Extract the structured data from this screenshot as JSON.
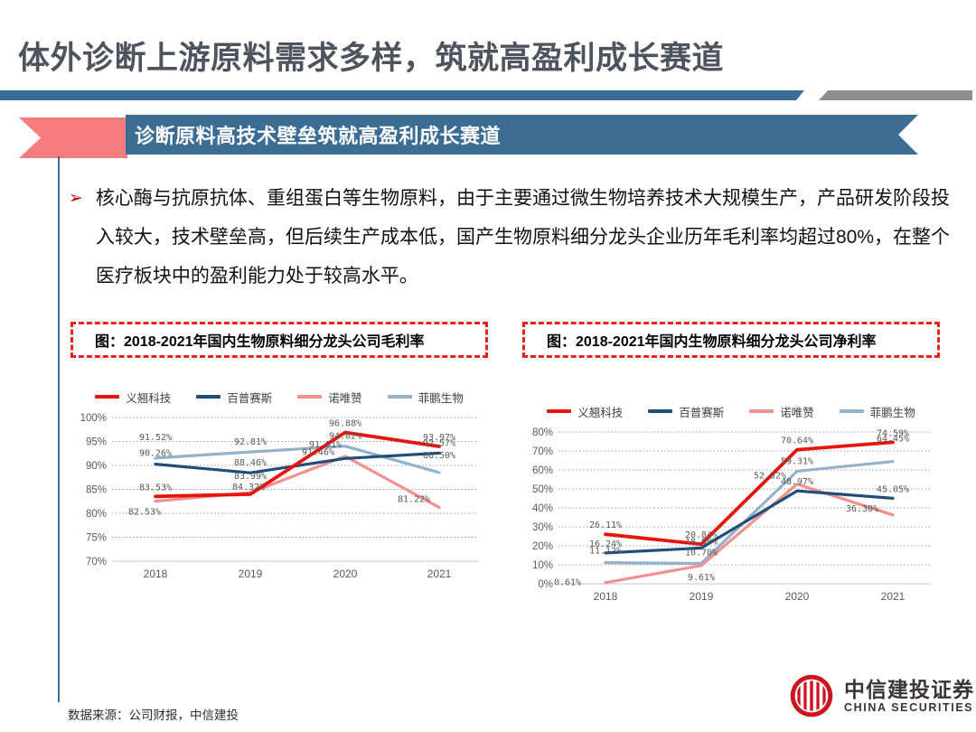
{
  "page": {
    "title": "体外诊断上游原料需求多样，筑就高盈利成长赛道",
    "banner_label": "诊断原料高技术壁垒筑就高盈利成长赛道",
    "bullet_glyph": "➢",
    "bullet_text": "核心酶与抗原抗体、重组蛋白等生物原料，由于主要通过微生物培养技术大规模生产，产品研发阶段投入较大，技术壁垒高，但后续生产成本低，国产生物原料细分龙头企业历年毛利率均超过80%，在整个医疗板块中的盈利能力处于较高水平。",
    "source": "数据来源：公司财报，中信建投",
    "logo": {
      "name_cn": "中信建投证券",
      "name_en": "CHINA SECURITIES"
    }
  },
  "colors": {
    "banner_blue": "#3b6d94",
    "accent_gray": "#8e8e8e",
    "ribbon_pink": "#f57d7d",
    "dashed_box_red": "#e8221e",
    "gridline_gray": "#9c9c9c",
    "label_gray": "#595959"
  },
  "chart_data": [
    {
      "type": "line",
      "title": "图：2018-2021年国内生物原料细分龙头公司毛利率",
      "categories": [
        "2018",
        "2019",
        "2020",
        "2021"
      ],
      "ylim": [
        70,
        100
      ],
      "ytick_step": 5,
      "ytick_suffix": "%",
      "grid": true,
      "legend_position": "top",
      "series": [
        {
          "name": "义翘科技",
          "color": "#e8140c",
          "values": [
            83.53,
            83.99,
            96.88,
            93.97
          ],
          "label_offsets": [
            [
              0,
              -7
            ],
            [
              0,
              -17
            ],
            [
              0,
              -7
            ],
            [
              0,
              -7
            ]
          ]
        },
        {
          "name": "百普赛斯",
          "color": "#1f4e79",
          "values": [
            90.26,
            88.46,
            91.46,
            92.57
          ],
          "label_offsets": [
            [
              0,
              -9
            ],
            [
              0,
              -8
            ],
            [
              -30,
              -4
            ],
            [
              0,
              -8
            ]
          ]
        },
        {
          "name": "诺唯赞",
          "color": "#f2908e",
          "values": [
            82.53,
            84.32,
            91.91,
            81.22
          ],
          "label_offsets": [
            [
              -12,
              15
            ],
            [
              -2,
              -3
            ],
            [
              -22,
              -10
            ],
            [
              -28,
              -6
            ]
          ]
        },
        {
          "name": "菲鹏生物",
          "color": "#92b1ca",
          "values": [
            91.52,
            92.81,
            94.02,
            88.5
          ],
          "label_offsets": [
            [
              0,
              -20
            ],
            [
              0,
              -8
            ],
            [
              0,
              -8
            ],
            [
              0,
              -16
            ]
          ]
        }
      ]
    },
    {
      "type": "line",
      "title": "图：2018-2021年国内生物原料细分龙头公司净利率",
      "categories": [
        "2018",
        "2019",
        "2020",
        "2021"
      ],
      "ylim": [
        0,
        80
      ],
      "ytick_step": 10,
      "ytick_suffix": "%",
      "grid": true,
      "legend_position": "top",
      "series": [
        {
          "name": "义翘科技",
          "color": "#e8140c",
          "values": [
            26.11,
            20.84,
            70.64,
            74.59
          ],
          "label_offsets": [
            [
              0,
              -7
            ],
            [
              0,
              -7
            ],
            [
              0,
              -7
            ],
            [
              0,
              -7
            ]
          ]
        },
        {
          "name": "百普赛斯",
          "color": "#1f4e79",
          "values": [
            16.24,
            18.88,
            48.97,
            45.05
          ],
          "label_offsets": [
            [
              0,
              -7
            ],
            [
              0,
              -4
            ],
            [
              0,
              -7
            ],
            [
              0,
              -7
            ]
          ]
        },
        {
          "name": "诺唯赞",
          "color": "#f2908e",
          "values": [
            0.61,
            9.61,
            52.52,
            36.3
          ],
          "label_offsets": [
            [
              -42,
              3
            ],
            [
              0,
              16
            ],
            [
              -30,
              -6
            ],
            [
              -34,
              -4
            ]
          ]
        },
        {
          "name": "菲鹏生物",
          "color": "#92b1ca",
          "values": [
            11.12,
            10.7,
            59.31,
            64.45
          ],
          "label_offsets": [
            [
              0,
              -10
            ],
            [
              0,
              -9
            ],
            [
              0,
              -8
            ],
            [
              0,
              -22
            ]
          ]
        }
      ]
    }
  ]
}
